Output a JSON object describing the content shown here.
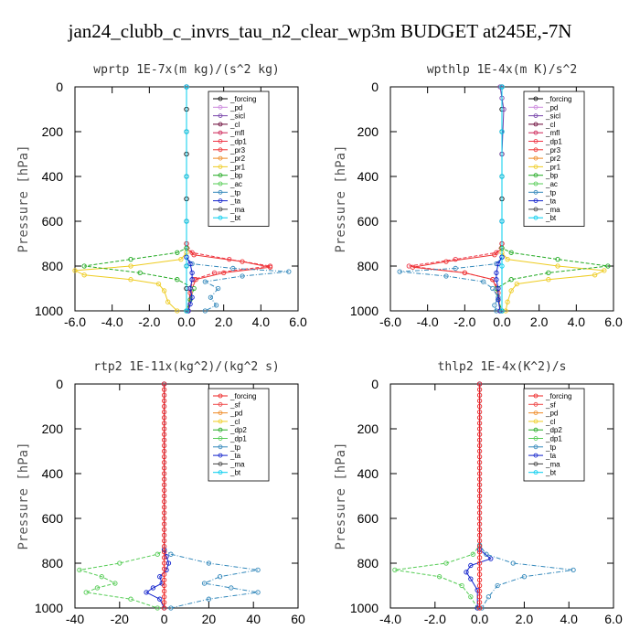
{
  "title": "jan24_clubb_c_invrs_tau_n2_clear_wp3m  BUDGET at245E,-7N",
  "chart_data": [
    {
      "type": "line",
      "title": "wprtp  1E-7x(m kg)/(s^2 kg)",
      "ylabel": "Pressure [hPa]",
      "xlim": [
        -6,
        6
      ],
      "ylim": [
        1000,
        0
      ],
      "xticks": [
        "-6.0",
        "-4.0",
        "-2.0",
        "0.0",
        "2.0",
        "4.0",
        "6.0"
      ],
      "yticks": [
        "0",
        "200",
        "400",
        "600",
        "800",
        "1000"
      ],
      "legend": [
        "_forcing",
        "_pd",
        "_sicl",
        "_cl",
        "_mfl",
        "_dp1",
        "_pr3",
        "_pr2",
        "_pr1",
        "_bp",
        "_ac",
        "_tp",
        "_ta",
        "_ma",
        "_bt"
      ],
      "colors": [
        "#000000",
        "#cc88dd",
        "#7744aa",
        "#660033",
        "#cc2255",
        "#ee3344",
        "#ee3333",
        "#ee8822",
        "#eecc22",
        "#22aa22",
        "#55cc55",
        "#3388bb",
        "#1122cc",
        "#444444",
        "#00ccee"
      ],
      "series": [
        {
          "name": "_forcing",
          "x": [
            0,
            0,
            0,
            0,
            0,
            0,
            0,
            0,
            0,
            0,
            0
          ],
          "y": [
            0,
            100,
            200,
            300,
            400,
            500,
            600,
            700,
            800,
            900,
            1000
          ]
        },
        {
          "name": "_dp1",
          "x": [
            0,
            0,
            0.3,
            2.3,
            4.5,
            1.5,
            0.4,
            0.2,
            0.1
          ],
          "y": [
            0,
            700,
            740,
            770,
            800,
            830,
            860,
            900,
            1000
          ]
        },
        {
          "name": "_pr3",
          "x": [
            0,
            0,
            0.4,
            3.0,
            4.5,
            2.0,
            0.5,
            0.2,
            0.1
          ],
          "y": [
            0,
            720,
            750,
            780,
            805,
            830,
            860,
            920,
            1000
          ]
        },
        {
          "name": "_pr1",
          "x": [
            0,
            0,
            -0.3,
            -3.0,
            -6.0,
            -5.5,
            -3.0,
            -1.5,
            -1.2,
            -1.0,
            -0.5
          ],
          "y": [
            0,
            740,
            770,
            800,
            820,
            840,
            860,
            880,
            910,
            960,
            1000
          ]
        },
        {
          "name": "_bp",
          "x": [
            0,
            0,
            -0.5,
            -3.0,
            -5.5,
            -2.5,
            -0.5,
            0.4,
            0.2,
            0.0
          ],
          "y": [
            0,
            720,
            740,
            770,
            800,
            830,
            860,
            900,
            950,
            1000
          ]
        },
        {
          "name": "_tp",
          "x": [
            0,
            0,
            0.3,
            2.5,
            5.5,
            3.0,
            1.0,
            1.7,
            1.3,
            1.6,
            1.0
          ],
          "y": [
            0,
            760,
            790,
            810,
            825,
            845,
            870,
            900,
            940,
            975,
            1000
          ]
        },
        {
          "name": "_ta",
          "x": [
            0,
            0,
            0.2,
            0.3,
            0.3,
            0.2,
            0.3,
            0.2,
            0.1
          ],
          "y": [
            0,
            760,
            790,
            830,
            860,
            900,
            940,
            970,
            1000
          ]
        },
        {
          "name": "_bt",
          "x": [
            0,
            0,
            0,
            0,
            0,
            0
          ],
          "y": [
            0,
            200,
            400,
            600,
            800,
            1000
          ]
        }
      ]
    },
    {
      "type": "line",
      "title": "wpthlp  1E-4x(m K)/s^2",
      "ylabel": "Pressure [hPa]",
      "xlim": [
        -6,
        6
      ],
      "ylim": [
        1000,
        0
      ],
      "xticks": [
        "-6.0",
        "-4.0",
        "-2.0",
        "0.0",
        "2.0",
        "4.0",
        "6.0"
      ],
      "yticks": [
        "0",
        "200",
        "400",
        "600",
        "800",
        "1000"
      ],
      "legend": [
        "_forcing",
        "_pd",
        "_sicl",
        "_cl",
        "_mfl",
        "_dp1",
        "_pr3",
        "_pr2",
        "_pr1",
        "_bp",
        "_ac",
        "_tp",
        "_ta",
        "_ma",
        "_bt"
      ],
      "colors": [
        "#000000",
        "#cc88dd",
        "#7744aa",
        "#660033",
        "#cc2255",
        "#ee3344",
        "#ee3333",
        "#ee8822",
        "#eecc22",
        "#22aa22",
        "#55cc55",
        "#3388bb",
        "#1122cc",
        "#444444",
        "#00ccee"
      ],
      "series": [
        {
          "name": "_forcing",
          "x": [
            0,
            0,
            0,
            0,
            0,
            0,
            0,
            0,
            0
          ],
          "y": [
            0,
            100,
            200,
            300,
            400,
            500,
            600,
            700,
            1000
          ]
        },
        {
          "name": "_sicl",
          "x": [
            -0.1,
            0,
            0.1,
            0,
            0,
            0
          ],
          "y": [
            0,
            50,
            100,
            300,
            600,
            1000
          ]
        },
        {
          "name": "_dp1",
          "x": [
            0,
            0,
            -0.3,
            -2.5,
            -5.0,
            -2.0,
            -0.5,
            -0.2,
            -0.1
          ],
          "y": [
            0,
            700,
            740,
            770,
            800,
            830,
            860,
            900,
            1000
          ]
        },
        {
          "name": "_pr3",
          "x": [
            0,
            0,
            -0.4,
            -3.0,
            -4.8,
            -2.0,
            -0.5,
            -0.2,
            -0.1
          ],
          "y": [
            0,
            720,
            750,
            780,
            805,
            830,
            860,
            920,
            1000
          ]
        },
        {
          "name": "_pr1",
          "x": [
            0,
            0,
            0.3,
            3.0,
            5.5,
            5.0,
            2.5,
            0.8,
            0.5,
            0.3,
            0.2
          ],
          "y": [
            0,
            740,
            770,
            800,
            820,
            840,
            860,
            880,
            910,
            960,
            1000
          ]
        },
        {
          "name": "_bp",
          "x": [
            0,
            0,
            0.5,
            3.0,
            5.7,
            2.5,
            0.5,
            -0.3,
            -0.2,
            0.0
          ],
          "y": [
            0,
            720,
            740,
            770,
            800,
            830,
            860,
            900,
            950,
            1000
          ]
        },
        {
          "name": "_tp",
          "x": [
            0,
            0,
            -0.3,
            -2.5,
            -5.5,
            -3.0,
            -1.0,
            -0.5,
            -0.2,
            -0.4,
            -0.3
          ],
          "y": [
            0,
            760,
            790,
            810,
            825,
            845,
            870,
            900,
            940,
            975,
            1000
          ]
        },
        {
          "name": "_ta",
          "x": [
            0,
            0,
            -0.2,
            -0.3,
            -0.3,
            -0.2,
            -0.2,
            -0.1
          ],
          "y": [
            0,
            760,
            790,
            830,
            860,
            900,
            950,
            1000
          ]
        },
        {
          "name": "_bt",
          "x": [
            0,
            0,
            0,
            0,
            0,
            0
          ],
          "y": [
            0,
            200,
            400,
            600,
            800,
            1000
          ]
        }
      ]
    },
    {
      "type": "line",
      "title": "rtp2  1E-11x(kg^2)/(kg^2 s)",
      "ylabel": "Pressure [hPa]",
      "xlim": [
        -40,
        60
      ],
      "ylim": [
        1000,
        0
      ],
      "xticks": [
        "-40",
        "-20",
        "0",
        "20",
        "40",
        "60"
      ],
      "yticks": [
        "0",
        "200",
        "400",
        "600",
        "800",
        "1000"
      ],
      "legend": [
        "_forcing",
        "_sf",
        "_pd",
        "_cl",
        "_dp2",
        "_dp1",
        "_tp",
        "_ta",
        "_ma",
        "_bt"
      ],
      "colors": [
        "#ee2222",
        "#ee4444",
        "#ee8822",
        "#eecc22",
        "#22aa22",
        "#55cc55",
        "#3388bb",
        "#1122cc",
        "#444444",
        "#00ccee"
      ],
      "series": [
        {
          "name": "_dp1",
          "x": [
            0,
            0,
            -3,
            -20,
            -38,
            -28,
            -22,
            -30,
            -35,
            -15,
            -3
          ],
          "y": [
            0,
            740,
            760,
            800,
            830,
            860,
            890,
            910,
            930,
            960,
            1000
          ]
        },
        {
          "name": "_tp",
          "x": [
            0,
            0,
            3,
            20,
            42,
            25,
            18,
            30,
            42,
            20,
            3
          ],
          "y": [
            0,
            740,
            760,
            800,
            830,
            860,
            890,
            910,
            930,
            960,
            1000
          ]
        },
        {
          "name": "_ta",
          "x": [
            0,
            0,
            1,
            2,
            1,
            -2,
            -1,
            -5,
            -8,
            -2,
            0
          ],
          "y": [
            0,
            740,
            770,
            800,
            830,
            860,
            890,
            910,
            930,
            960,
            1000
          ]
        },
        {
          "name": "_forcing",
          "x": [
            0,
            0,
            0,
            0,
            0,
            0,
            0,
            0,
            0,
            0,
            0,
            0,
            0,
            0,
            0,
            0,
            0,
            0,
            0,
            0,
            0,
            0,
            0,
            0,
            0,
            0,
            0,
            0,
            0,
            0,
            0,
            0,
            0,
            0,
            0,
            0,
            0,
            0,
            0,
            0,
            0
          ],
          "y": [
            0,
            25,
            50,
            75,
            100,
            125,
            150,
            175,
            200,
            225,
            250,
            275,
            300,
            325,
            350,
            375,
            400,
            425,
            450,
            475,
            500,
            525,
            550,
            575,
            600,
            625,
            650,
            675,
            700,
            725,
            750,
            775,
            800,
            825,
            850,
            875,
            900,
            925,
            950,
            975,
            1000
          ]
        }
      ]
    },
    {
      "type": "line",
      "title": "thlp2  1E-4x(K^2)/s",
      "ylabel": "Pressure [hPa]",
      "xlim": [
        -4,
        6
      ],
      "ylim": [
        1000,
        0
      ],
      "xticks": [
        "-4.0",
        "-2.0",
        "0.0",
        "2.0",
        "4.0",
        "6.0"
      ],
      "yticks": [
        "0",
        "200",
        "400",
        "600",
        "800",
        "1000"
      ],
      "legend": [
        "_forcing",
        "_sf",
        "_pd",
        "_cl",
        "_dp2",
        "_dp1",
        "_tp",
        "_ta",
        "_ma",
        "_bt"
      ],
      "colors": [
        "#ee2222",
        "#ee4444",
        "#ee8822",
        "#eecc22",
        "#22aa22",
        "#55cc55",
        "#3388bb",
        "#1122cc",
        "#444444",
        "#00ccee"
      ],
      "series": [
        {
          "name": "_dp1",
          "x": [
            0,
            0,
            -0.3,
            -1.5,
            -3.8,
            -1.8,
            -0.8,
            -0.4,
            -0.1
          ],
          "y": [
            0,
            720,
            760,
            800,
            830,
            860,
            900,
            950,
            1000
          ]
        },
        {
          "name": "_tp",
          "x": [
            0,
            0,
            0.3,
            1.5,
            4.2,
            2.0,
            0.8,
            0.4,
            0.1
          ],
          "y": [
            0,
            720,
            760,
            800,
            830,
            860,
            900,
            950,
            1000
          ]
        },
        {
          "name": "_ta",
          "x": [
            0,
            0,
            0.5,
            -0.4,
            -0.6,
            -0.4,
            -0.1,
            -0.1
          ],
          "y": [
            0,
            740,
            780,
            810,
            840,
            870,
            920,
            1000
          ]
        },
        {
          "name": "_forcing",
          "x": [
            0,
            0,
            0,
            0,
            0,
            0,
            0,
            0,
            0,
            0,
            0,
            0,
            0,
            0,
            0,
            0,
            0,
            0,
            0,
            0,
            0,
            0,
            0,
            0,
            0,
            0,
            0,
            0,
            0,
            0,
            0,
            0,
            0,
            0,
            0,
            0,
            0,
            0,
            0,
            0,
            0
          ],
          "y": [
            0,
            25,
            50,
            75,
            100,
            125,
            150,
            175,
            200,
            225,
            250,
            275,
            300,
            325,
            350,
            375,
            400,
            425,
            450,
            475,
            500,
            525,
            550,
            575,
            600,
            625,
            650,
            675,
            700,
            725,
            750,
            775,
            800,
            825,
            850,
            875,
            900,
            925,
            950,
            975,
            1000
          ]
        }
      ]
    }
  ]
}
